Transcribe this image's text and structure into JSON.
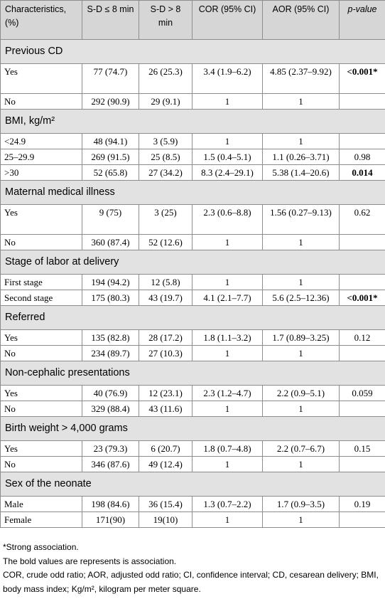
{
  "headers": [
    "Characteristics, (%)",
    "S-D ≤ 8 min",
    "S-D > 8 min",
    "COR (95% CI)",
    "AOR (95% CI)",
    "p-value"
  ],
  "sections": [
    {
      "title": "Previous CD",
      "rows": [
        {
          "label": "Yes",
          "sd_le": "77 (74.7)",
          "sd_gt": "26 (25.3)",
          "cor": "3.4 (1.9–6.2)",
          "aor": "4.85 (2.37–9.92)",
          "p": "<0.001*",
          "bold": true
        },
        {
          "label": "No",
          "sd_le": "292 (90.9)",
          "sd_gt": "29 (9.1)",
          "cor": "1",
          "aor": "1",
          "p": "",
          "bold": false
        }
      ]
    },
    {
      "title": "BMI, kg/m²",
      "rows": [
        {
          "label": "<24.9",
          "sd_le": "48 (94.1)",
          "sd_gt": "3 (5.9)",
          "cor": "1",
          "aor": "1",
          "p": "",
          "bold": false
        },
        {
          "label": "25–29.9",
          "sd_le": "269 (91.5)",
          "sd_gt": "25 (8.5)",
          "cor": "1.5 (0.4–5.1)",
          "aor": "1.1 (0.26–3.71)",
          "p": "0.98",
          "bold": false
        },
        {
          "label": ">30",
          "sd_le": "52 (65.8)",
          "sd_gt": "27 (34.2)",
          "cor": "8.3 (2.4–29.1)",
          "aor": "5.38 (1.4–20.6)",
          "p": "0.014",
          "bold": true
        }
      ]
    },
    {
      "title": "Maternal medical illness",
      "rows": [
        {
          "label": "Yes",
          "sd_le": "9 (75)",
          "sd_gt": "3 (25)",
          "cor": "2.3 (0.6–8.8)",
          "aor": "1.56 (0.27–9.13)",
          "p": "0.62",
          "bold": false
        },
        {
          "label": "No",
          "sd_le": "360 (87.4)",
          "sd_gt": "52 (12.6)",
          "cor": "1",
          "aor": "1",
          "p": "",
          "bold": false
        }
      ]
    },
    {
      "title": "Stage of labor at delivery",
      "rows": [
        {
          "label": "First stage",
          "sd_le": "194 (94.2)",
          "sd_gt": "12 (5.8)",
          "cor": "1",
          "aor": "1",
          "p": "",
          "bold": false
        },
        {
          "label": "Second stage",
          "sd_le": "175 (80.3)",
          "sd_gt": "43 (19.7)",
          "cor": "4.1 (2.1–7.7)",
          "aor": "5.6 (2.5–12.36)",
          "p": "<0.001*",
          "bold": true
        }
      ]
    },
    {
      "title": "Referred",
      "rows": [
        {
          "label": "Yes",
          "sd_le": "135 (82.8)",
          "sd_gt": "28 (17.2)",
          "cor": "1.8 (1.1–3.2)",
          "aor": "1.7 (0.89–3.25)",
          "p": "0.12",
          "bold": false
        },
        {
          "label": "No",
          "sd_le": "234 (89.7)",
          "sd_gt": "27 (10.3)",
          "cor": "1",
          "aor": "1",
          "p": "",
          "bold": false
        }
      ]
    },
    {
      "title": "Non-cephalic presentations",
      "rows": [
        {
          "label": "Yes",
          "sd_le": "40 (76.9)",
          "sd_gt": "12 (23.1)",
          "cor": "2.3 (1.2–4.7)",
          "aor": "2.2 (0.9–5.1)",
          "p": "0.059",
          "bold": false
        },
        {
          "label": "No",
          "sd_le": "329 (88.4)",
          "sd_gt": "43 (11.6)",
          "cor": "1",
          "aor": "1",
          "p": "",
          "bold": false
        }
      ]
    },
    {
      "title": "Birth weight > 4,000 grams",
      "rows": [
        {
          "label": "Yes",
          "sd_le": "23 (79.3)",
          "sd_gt": "6 (20.7)",
          "cor": "1.8 (0.7–4.8)",
          "aor": "2.2 (0.7–6.7)",
          "p": "0.15",
          "bold": false
        },
        {
          "label": "No",
          "sd_le": "346 (87.6)",
          "sd_gt": "49 (12.4)",
          "cor": "1",
          "aor": "1",
          "p": "",
          "bold": false
        }
      ]
    },
    {
      "title": "Sex of the neonate",
      "rows": [
        {
          "label": "Male",
          "sd_le": "198 (84.6)",
          "sd_gt": "36 (15.4)",
          "cor": "1.3 (0.7–2.2)",
          "aor": "1.7 (0.9–3.5)",
          "p": "0.19",
          "bold": false
        },
        {
          "label": "Female",
          "sd_le": "171(90)",
          "sd_gt": "19(10)",
          "cor": "1",
          "aor": "1",
          "p": "",
          "bold": false
        }
      ]
    }
  ],
  "notes": [
    "*Strong association.",
    "The bold values are represents is association.",
    "COR, crude odd ratio; AOR, adjusted odd ratio; CI, confidence interval; CD, cesarean delivery; BMI, body mass index; Kg/m², kilogram per meter square."
  ]
}
